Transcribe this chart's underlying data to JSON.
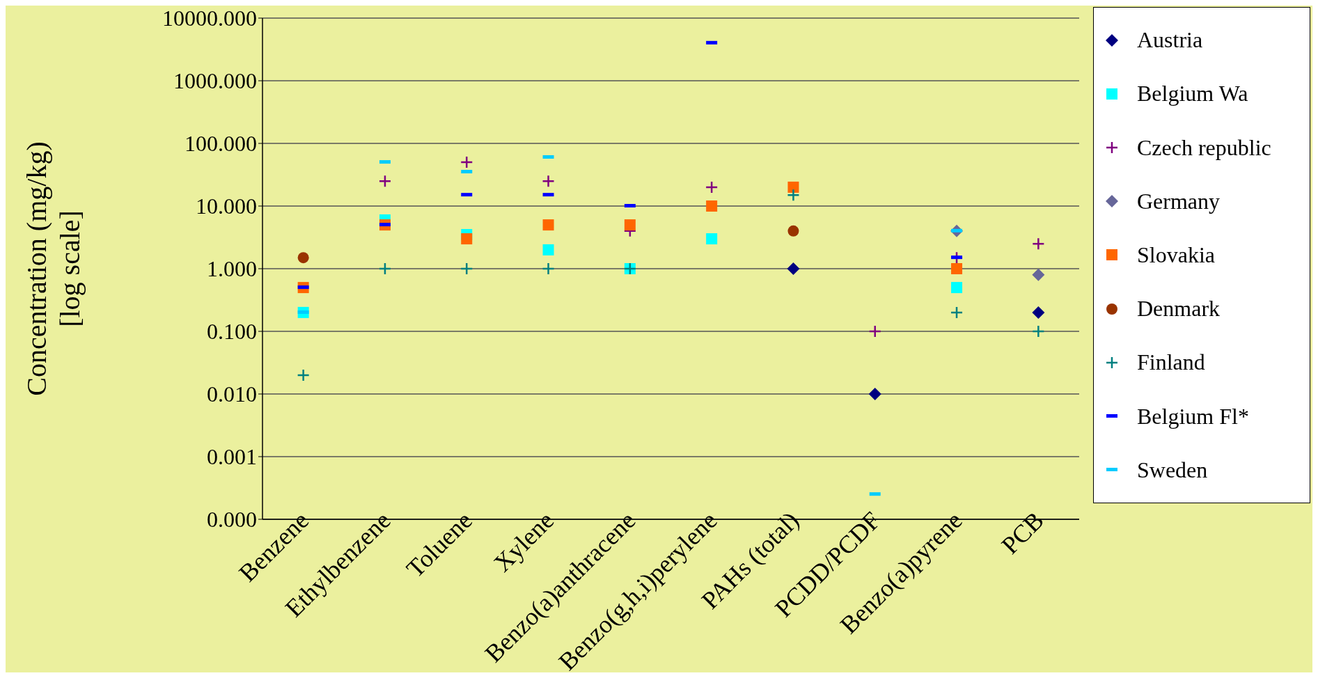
{
  "chart_data": {
    "type": "scatter",
    "ylabel": "Concentration (mg/kg) [log scale]",
    "categories": [
      "Benzene",
      "Ethylbenzene",
      "Toluene",
      "Xylene",
      "Benzo(a)anthracene",
      "Benzo(g,h,i)perylene",
      "PAHs (total)",
      "PCDD/PCDF",
      "Benzo(a)pyrene",
      "PCB"
    ],
    "series": [
      {
        "name": "Austria",
        "color": "#000080",
        "marker": "diamond",
        "values": [
          null,
          null,
          null,
          null,
          null,
          null,
          1,
          0.01,
          null,
          0.2
        ]
      },
      {
        "name": "Belgium Wa",
        "color": "#00ffff",
        "marker": "square",
        "values": [
          0.2,
          6,
          3.5,
          2,
          1,
          3,
          null,
          null,
          0.5,
          null
        ]
      },
      {
        "name": "Czech republic",
        "color": "#800080",
        "marker": "cross",
        "values": [
          null,
          25,
          50,
          25,
          4,
          20,
          null,
          0.1,
          1.5,
          2.5
        ]
      },
      {
        "name": "Germany",
        "color": "#666699",
        "marker": "diamond",
        "values": [
          null,
          null,
          null,
          null,
          null,
          null,
          null,
          null,
          4,
          0.8
        ]
      },
      {
        "name": "Slovakia",
        "color": "#ff6600",
        "marker": "square",
        "values": [
          0.5,
          5,
          3,
          5,
          5,
          10,
          20,
          null,
          1,
          null
        ]
      },
      {
        "name": "Denmark",
        "color": "#993300",
        "marker": "circle",
        "values": [
          1.5,
          null,
          null,
          null,
          null,
          null,
          4,
          null,
          null,
          null
        ]
      },
      {
        "name": "Finland",
        "color": "#008080",
        "marker": "cross",
        "values": [
          0.02,
          1,
          1,
          1,
          1,
          null,
          15,
          null,
          0.2,
          0.1
        ]
      },
      {
        "name": "Belgium Fl*",
        "color": "#0000ff",
        "values": [
          0.5,
          5,
          15,
          15,
          10,
          4000,
          null,
          null,
          1.5,
          null
        ]
      },
      {
        "name": "Sweden",
        "color": "#00ccff",
        "values": [
          0.2,
          50,
          35,
          60,
          null,
          null,
          null,
          0.00025,
          4,
          null
        ]
      }
    ],
    "log": true,
    "ylim": [
      0.0001,
      10000
    ],
    "yticks": [
      {
        "value": 0.0001,
        "label": "0.000"
      },
      {
        "value": 0.001,
        "label": "0.001"
      },
      {
        "value": 0.01,
        "label": "0.010"
      },
      {
        "value": 0.1,
        "label": "0.100"
      },
      {
        "value": 1,
        "label": "1.000"
      },
      {
        "value": 10,
        "label": "10.000"
      },
      {
        "value": 100,
        "label": "100.000"
      },
      {
        "value": 1000,
        "label": "1000.000"
      },
      {
        "value": 10000,
        "label": "10000.000"
      }
    ],
    "grid": "y",
    "legend": "right"
  }
}
